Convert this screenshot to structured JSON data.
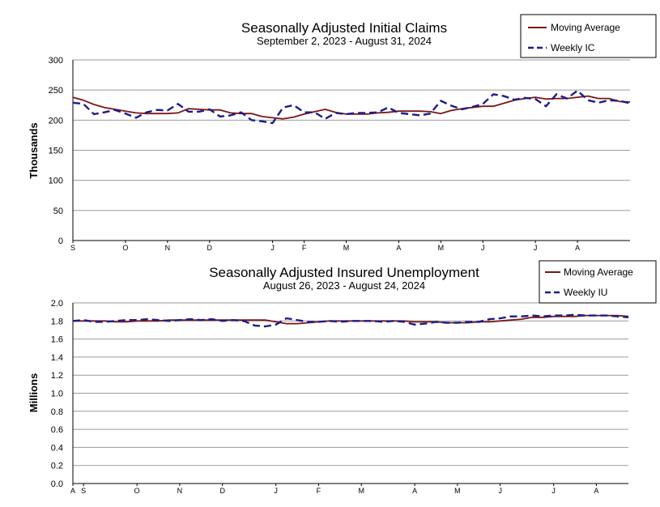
{
  "chart_data": [
    {
      "type": "line",
      "title": "Seasonally Adjusted Initial Claims",
      "subtitle": "September 2, 2023 - August 31, 2024",
      "ylabel": "Thousands",
      "xlabel": "",
      "ylim": [
        0,
        300
      ],
      "yticks": [
        "0",
        "50",
        "100",
        "150",
        "200",
        "250",
        "300"
      ],
      "ytick_values": [
        0,
        50,
        100,
        150,
        200,
        250,
        300
      ],
      "grid": true,
      "legend_position": "top-right",
      "month_ticks": [
        {
          "label": "S",
          "week": 0
        },
        {
          "label": "O",
          "week": 5
        },
        {
          "label": "N",
          "week": 9
        },
        {
          "label": "D",
          "week": 13
        },
        {
          "label": "J",
          "week": 19
        },
        {
          "label": "F",
          "week": 22
        },
        {
          "label": "M",
          "week": 26
        },
        {
          "label": "A",
          "week": 31
        },
        {
          "label": "M",
          "week": 35
        },
        {
          "label": "J",
          "week": 39
        },
        {
          "label": "J",
          "week": 44
        },
        {
          "label": "A",
          "week": 48
        }
      ],
      "series": [
        {
          "name": "Moving Average",
          "color": "#7b1616",
          "style": "solid",
          "values": [
            238,
            233,
            226,
            221,
            218,
            215,
            212,
            211,
            211,
            211,
            212,
            219,
            218,
            217,
            217,
            212,
            211,
            211,
            206,
            204,
            202,
            205,
            210,
            214,
            218,
            213,
            210,
            210,
            210,
            212,
            213,
            215,
            215,
            215,
            214,
            211,
            216,
            219,
            221,
            223,
            223,
            228,
            233,
            236,
            238,
            235,
            236,
            236,
            238,
            240,
            236,
            236,
            231,
            230
          ]
        },
        {
          "name": "Weekly IC",
          "color": "#1c1c8c",
          "style": "dashed",
          "values": [
            229,
            227,
            210,
            213,
            217,
            211,
            204,
            213,
            217,
            216,
            227,
            214,
            214,
            218,
            206,
            208,
            213,
            200,
            198,
            195,
            221,
            225,
            213,
            213,
            202,
            212,
            210,
            212,
            212,
            213,
            221,
            212,
            210,
            208,
            211,
            232,
            224,
            218,
            222,
            227,
            243,
            240,
            234,
            237,
            235,
            223,
            243,
            236,
            249,
            233,
            229,
            233,
            232,
            228
          ]
        }
      ]
    },
    {
      "type": "line",
      "title": "Seasonally Adjusted Insured Unemployment",
      "subtitle": "August 26, 2023 - August 24, 2024",
      "ylabel": "Millions",
      "xlabel": "",
      "ylim": [
        0,
        2.0
      ],
      "yticks": [
        "0.0",
        "0.2",
        "0.4",
        "0.6",
        "0.8",
        "1.0",
        "1.2",
        "1.4",
        "1.6",
        "1.8",
        "2.0"
      ],
      "ytick_values": [
        0,
        0.2,
        0.4,
        0.6,
        0.8,
        1.0,
        1.2,
        1.4,
        1.6,
        1.8,
        2.0
      ],
      "grid": true,
      "legend_position": "top-right",
      "month_ticks": [
        {
          "label": "A",
          "week": 0
        },
        {
          "label": "S",
          "week": 1
        },
        {
          "label": "O",
          "week": 6
        },
        {
          "label": "N",
          "week": 10
        },
        {
          "label": "D",
          "week": 14
        },
        {
          "label": "J",
          "week": 19
        },
        {
          "label": "F",
          "week": 23
        },
        {
          "label": "M",
          "week": 27
        },
        {
          "label": "A",
          "week": 32
        },
        {
          "label": "M",
          "week": 36
        },
        {
          "label": "J",
          "week": 40
        },
        {
          "label": "J",
          "week": 45
        },
        {
          "label": "A",
          "week": 49
        }
      ],
      "series": [
        {
          "name": "Moving Average",
          "color": "#7b1616",
          "style": "solid",
          "values": [
            1.8,
            1.8,
            1.8,
            1.8,
            1.79,
            1.79,
            1.8,
            1.8,
            1.8,
            1.81,
            1.81,
            1.81,
            1.81,
            1.81,
            1.81,
            1.81,
            1.81,
            1.81,
            1.81,
            1.79,
            1.77,
            1.77,
            1.78,
            1.79,
            1.8,
            1.8,
            1.8,
            1.8,
            1.8,
            1.8,
            1.8,
            1.8,
            1.79,
            1.79,
            1.79,
            1.78,
            1.78,
            1.78,
            1.79,
            1.79,
            1.8,
            1.81,
            1.82,
            1.84,
            1.84,
            1.85,
            1.85,
            1.85,
            1.86,
            1.86,
            1.86,
            1.86,
            1.85
          ]
        },
        {
          "name": "Weekly IU",
          "color": "#1c1c8c",
          "style": "dashed",
          "values": [
            1.8,
            1.81,
            1.79,
            1.79,
            1.8,
            1.81,
            1.81,
            1.82,
            1.81,
            1.8,
            1.81,
            1.82,
            1.81,
            1.82,
            1.8,
            1.81,
            1.8,
            1.75,
            1.74,
            1.76,
            1.83,
            1.81,
            1.79,
            1.79,
            1.8,
            1.79,
            1.8,
            1.8,
            1.8,
            1.79,
            1.8,
            1.79,
            1.76,
            1.77,
            1.79,
            1.78,
            1.78,
            1.79,
            1.79,
            1.82,
            1.83,
            1.85,
            1.85,
            1.86,
            1.85,
            1.86,
            1.86,
            1.87,
            1.86,
            1.86,
            1.86,
            1.85,
            1.84
          ]
        }
      ]
    }
  ]
}
